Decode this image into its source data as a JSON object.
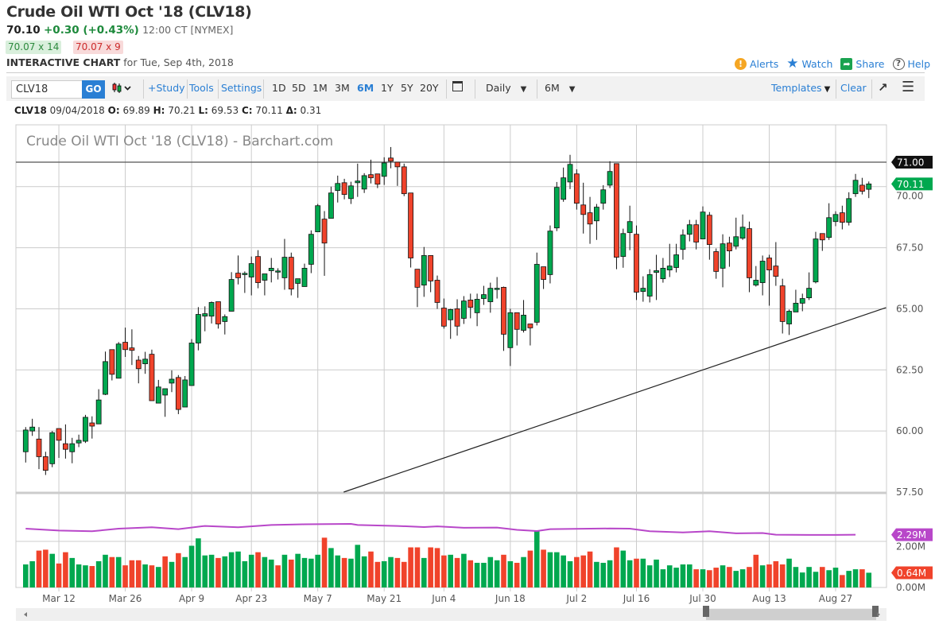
{
  "header": {
    "title": "Crude Oil WTI Oct '18 (CLV18)",
    "last": "70.10",
    "change": "+0.30 (+0.43%)",
    "time": "12:00 CT [NYMEX]",
    "bid": "70.07 x 14",
    "ask": "70.07 x 9",
    "interactive_label": "INTERACTIVE CHART",
    "interactive_date": "for Tue, Sep 4th, 2018",
    "links": {
      "alerts": "Alerts",
      "watch": "Watch",
      "share": "Share",
      "help": "Help"
    }
  },
  "toolbar": {
    "symbol_value": "CLV18",
    "go": "GO",
    "study": "+Study",
    "tools": "Tools",
    "settings": "Settings",
    "periods": [
      "1D",
      "5D",
      "1M",
      "3M",
      "6M",
      "1Y",
      "5Y",
      "20Y"
    ],
    "active_period": "6M",
    "interval": "Daily",
    "range": "6M",
    "templates": "Templates",
    "clear": "Clear"
  },
  "ohlc_line": {
    "symbol": "CLV18",
    "date": "09/04/2018",
    "o_label": "O:",
    "o": "69.89",
    "h_label": "H:",
    "h": "70.21",
    "l_label": "L:",
    "l": "69.53",
    "c_label": "C:",
    "c": "70.11",
    "d_label": "Δ:",
    "d": "0.31"
  },
  "colors": {
    "up": "#00a84f",
    "down": "#f0432b",
    "volume_oi": "#b847c9",
    "grid": "#cccccc",
    "link": "#2a7fd4"
  },
  "chart_data": {
    "type": "candlestick",
    "title": "Crude Oil WTI Oct '18 (CLV18) - Barchart.com",
    "ylim": [
      57.5,
      72.5
    ],
    "yticks": [
      "57.50",
      "60.00",
      "62.50",
      "65.00",
      "67.50",
      "70.00"
    ],
    "ytick_values": [
      57.5,
      60,
      62.5,
      65,
      67.5,
      70
    ],
    "xticks": [
      {
        "i": 5,
        "label": "Mar 12"
      },
      {
        "i": 15,
        "label": "Mar 26"
      },
      {
        "i": 25,
        "label": "Apr 9"
      },
      {
        "i": 34,
        "label": "Apr 23"
      },
      {
        "i": 44,
        "label": "May 7"
      },
      {
        "i": 54,
        "label": "May 21"
      },
      {
        "i": 63,
        "label": "Jun 4"
      },
      {
        "i": 73,
        "label": "Jun 18"
      },
      {
        "i": 83,
        "label": "Jul 2"
      },
      {
        "i": 92,
        "label": "Jul 16"
      },
      {
        "i": 102,
        "label": "Jul 30"
      },
      {
        "i": 112,
        "label": "Aug 13"
      },
      {
        "i": 122,
        "label": "Aug 27"
      }
    ],
    "ohlc": [
      [
        59.15,
        60.16,
        58.71,
        60.04
      ],
      [
        60.0,
        60.5,
        59.8,
        60.16
      ],
      [
        59.67,
        60.16,
        58.44,
        58.95
      ],
      [
        58.95,
        59.15,
        58.2,
        58.39
      ],
      [
        58.66,
        60.0,
        58.52,
        59.93
      ],
      [
        60.1,
        60.1,
        58.9,
        59.62
      ],
      [
        59.48,
        60.27,
        58.87,
        59.25
      ],
      [
        59.15,
        59.72,
        58.68,
        59.48
      ],
      [
        59.51,
        59.85,
        59.34,
        59.62
      ],
      [
        59.58,
        60.66,
        59.51,
        60.56
      ],
      [
        60.33,
        60.6,
        59.69,
        60.2
      ],
      [
        60.29,
        61.71,
        60.29,
        61.27
      ],
      [
        61.5,
        63.25,
        61.47,
        62.84
      ],
      [
        63.33,
        63.33,
        62.07,
        62.32
      ],
      [
        62.16,
        63.64,
        62.16,
        63.56
      ],
      [
        63.63,
        64.23,
        63.03,
        63.33
      ],
      [
        63.4,
        64.16,
        62.7,
        63.3
      ],
      [
        62.9,
        63.07,
        61.95,
        62.55
      ],
      [
        62.75,
        63.24,
        62.34,
        62.94
      ],
      [
        63.14,
        63.33,
        61.24,
        61.24
      ],
      [
        61.14,
        62.09,
        61.14,
        61.8
      ],
      [
        61.47,
        61.73,
        60.58,
        61.73
      ],
      [
        61.96,
        62.48,
        61.59,
        62.12
      ],
      [
        62.19,
        62.29,
        60.69,
        60.88
      ],
      [
        60.98,
        62.25,
        60.98,
        62.09
      ],
      [
        61.86,
        63.76,
        61.86,
        63.6
      ],
      [
        63.6,
        65.07,
        63.3,
        64.77
      ],
      [
        64.7,
        65.1,
        64.08,
        64.8
      ],
      [
        64.7,
        65.3,
        64.4,
        65.26
      ],
      [
        65.29,
        65.29,
        64.19,
        64.38
      ],
      [
        64.48,
        64.77,
        63.95,
        64.68
      ],
      [
        64.9,
        66.5,
        64.9,
        66.2
      ],
      [
        66.46,
        67.18,
        66.0,
        66.27
      ],
      [
        66.42,
        66.53,
        65.65,
        66.45
      ],
      [
        66.3,
        67.14,
        65.55,
        66.85
      ],
      [
        67.14,
        67.4,
        65.84,
        66.07
      ],
      [
        66.17,
        66.43,
        65.55,
        66.43
      ],
      [
        66.56,
        67.08,
        66.08,
        66.66
      ],
      [
        66.54,
        66.66,
        66.2,
        66.55
      ],
      [
        66.27,
        67.86,
        65.78,
        67.11
      ],
      [
        67.11,
        67.3,
        65.55,
        65.81
      ],
      [
        66.04,
        66.23,
        65.45,
        66.23
      ],
      [
        65.91,
        66.85,
        65.91,
        66.66
      ],
      [
        66.82,
        68.21,
        66.46,
        68.05
      ],
      [
        68.15,
        69.29,
        68.15,
        69.22
      ],
      [
        68.67,
        69.0,
        66.35,
        67.69
      ],
      [
        68.7,
        70.0,
        68.7,
        69.74
      ],
      [
        69.84,
        70.45,
        69.35,
        70.13
      ],
      [
        70.16,
        70.32,
        69.48,
        69.68
      ],
      [
        69.51,
        70.2,
        69.29,
        70.03
      ],
      [
        70.16,
        70.94,
        69.58,
        70.23
      ],
      [
        69.9,
        70.55,
        69.74,
        70.45
      ],
      [
        70.49,
        71.1,
        70.13,
        70.36
      ],
      [
        70.52,
        70.52,
        69.94,
        70.1
      ],
      [
        70.42,
        71.2,
        70.07,
        70.97
      ],
      [
        71.17,
        71.62,
        70.75,
        71.04
      ],
      [
        71.0,
        71.0,
        70.03,
        70.81
      ],
      [
        70.81,
        70.94,
        69.61,
        69.71
      ],
      [
        69.74,
        69.74,
        66.69,
        67.08
      ],
      [
        66.62,
        66.62,
        65.07,
        65.88
      ],
      [
        65.97,
        67.53,
        65.49,
        67.18
      ],
      [
        67.18,
        67.18,
        65.68,
        66.14
      ],
      [
        66.17,
        66.36,
        65.0,
        65.26
      ],
      [
        65.03,
        65.42,
        64.19,
        64.29
      ],
      [
        64.55,
        65.0,
        63.77,
        64.97
      ],
      [
        65.0,
        65.39,
        63.9,
        64.29
      ],
      [
        64.61,
        65.52,
        64.38,
        65.32
      ],
      [
        65.36,
        65.62,
        64.61,
        65.06
      ],
      [
        64.84,
        65.62,
        64.29,
        65.39
      ],
      [
        65.42,
        65.94,
        65.16,
        65.58
      ],
      [
        65.29,
        66.07,
        64.84,
        65.84
      ],
      [
        65.82,
        66.3,
        65.42,
        65.84
      ],
      [
        65.88,
        65.91,
        63.28,
        63.96
      ],
      [
        63.41,
        65.0,
        62.66,
        64.84
      ],
      [
        64.84,
        64.84,
        63.5,
        64.16
      ],
      [
        64.12,
        65.36,
        64.03,
        64.74
      ],
      [
        64.38,
        64.38,
        63.5,
        64.22
      ],
      [
        64.45,
        67.3,
        64.32,
        66.82
      ],
      [
        66.72,
        66.72,
        65.81,
        66.2
      ],
      [
        66.4,
        68.41,
        66.04,
        68.18
      ],
      [
        68.31,
        70.19,
        68.18,
        69.97
      ],
      [
        69.48,
        70.78,
        69.38,
        70.36
      ],
      [
        70.19,
        71.3,
        69.9,
        70.91
      ],
      [
        70.52,
        70.71,
        69.06,
        69.32
      ],
      [
        69.25,
        70.16,
        68.08,
        68.86
      ],
      [
        68.93,
        69.58,
        67.66,
        68.47
      ],
      [
        68.6,
        69.29,
        67.82,
        69.16
      ],
      [
        69.32,
        70.06,
        69.06,
        69.87
      ],
      [
        70.06,
        71.04,
        69.94,
        70.62
      ],
      [
        70.94,
        70.94,
        66.62,
        67.11
      ],
      [
        67.14,
        68.28,
        66.68,
        68.08
      ],
      [
        68.12,
        69.22,
        67.4,
        68.57
      ],
      [
        68.05,
        68.41,
        65.36,
        65.68
      ],
      [
        65.71,
        66.33,
        65.29,
        65.84
      ],
      [
        65.52,
        66.62,
        65.26,
        66.4
      ],
      [
        66.49,
        67.21,
        65.36,
        66.56
      ],
      [
        66.23,
        67.08,
        66.07,
        66.66
      ],
      [
        66.59,
        67.66,
        66.3,
        66.75
      ],
      [
        66.69,
        67.66,
        66.49,
        67.21
      ],
      [
        67.43,
        68.25,
        67.01,
        68.02
      ],
      [
        68.05,
        68.64,
        67.76,
        68.44
      ],
      [
        68.44,
        68.64,
        67.43,
        67.73
      ],
      [
        67.86,
        69.19,
        67.86,
        68.96
      ],
      [
        68.83,
        68.96,
        67.01,
        67.63
      ],
      [
        67.34,
        67.47,
        66.23,
        66.53
      ],
      [
        66.66,
        68.05,
        65.88,
        67.66
      ],
      [
        67.69,
        67.95,
        66.72,
        67.37
      ],
      [
        67.56,
        68.73,
        67.43,
        67.95
      ],
      [
        67.89,
        68.86,
        67.82,
        68.34
      ],
      [
        68.28,
        68.57,
        65.68,
        66.27
      ],
      [
        65.97,
        66.75,
        65.91,
        66.17
      ],
      [
        66.07,
        67.18,
        65.55,
        66.95
      ],
      [
        67.08,
        67.21,
        65.13,
        66.59
      ],
      [
        66.75,
        67.73,
        65.94,
        66.33
      ],
      [
        65.94,
        66.23,
        63.99,
        64.48
      ],
      [
        64.38,
        64.97,
        63.93,
        64.9
      ],
      [
        64.87,
        65.78,
        64.87,
        65.23
      ],
      [
        65.23,
        65.62,
        64.9,
        65.42
      ],
      [
        65.45,
        66.49,
        65.36,
        65.84
      ],
      [
        66.1,
        68.15,
        66.04,
        67.86
      ],
      [
        68.08,
        68.08,
        67.37,
        67.82
      ],
      [
        67.92,
        69.32,
        67.82,
        68.73
      ],
      [
        68.57,
        68.99,
        68.38,
        68.86
      ],
      [
        68.93,
        69.22,
        68.25,
        68.54
      ],
      [
        68.54,
        69.77,
        68.41,
        69.51
      ],
      [
        69.71,
        70.52,
        69.58,
        70.26
      ],
      [
        70.06,
        70.36,
        69.68,
        69.81
      ],
      [
        69.89,
        70.21,
        69.53,
        70.11
      ]
    ],
    "volume_M": [
      1.0,
      1.14,
      1.6,
      1.64,
      1.46,
      1.04,
      1.53,
      1.28,
      1.0,
      0.96,
      0.93,
      1.14,
      1.42,
      1.32,
      1.32,
      0.96,
      1.18,
      1.18,
      1.0,
      0.96,
      0.89,
      1.35,
      1.11,
      1.49,
      1.32,
      1.81,
      2.13,
      1.39,
      1.42,
      1.28,
      1.35,
      1.53,
      1.56,
      1.14,
      1.42,
      1.53,
      1.32,
      1.21,
      0.96,
      1.42,
      1.21,
      1.46,
      1.28,
      1.25,
      1.42,
      2.16,
      1.71,
      1.39,
      1.28,
      1.25,
      1.85,
      1.35,
      1.56,
      1.11,
      1.14,
      1.32,
      1.28,
      1.11,
      1.74,
      1.74,
      1.28,
      1.74,
      1.71,
      1.39,
      1.42,
      1.28,
      1.46,
      1.18,
      1.07,
      1.07,
      1.32,
      1.18,
      1.42,
      1.14,
      1.07,
      1.32,
      1.6,
      2.45,
      1.64,
      1.53,
      1.53,
      1.39,
      1.14,
      1.32,
      1.39,
      1.56,
      1.11,
      1.07,
      1.18,
      1.74,
      1.6,
      1.18,
      1.25,
      1.25,
      0.96,
      1.21,
      0.79,
      0.96,
      0.86,
      1.0,
      1.0,
      0.79,
      0.79,
      0.75,
      0.86,
      0.96,
      0.89,
      0.72,
      0.79,
      0.89,
      1.42,
      0.96,
      1.0,
      1.14,
      1.0,
      1.25,
      0.89,
      0.65,
      0.89,
      0.68,
      0.89,
      0.75,
      0.86,
      0.54,
      0.72,
      0.79,
      0.79,
      0.64
    ],
    "open_interest_M": [
      [
        0,
        2.55
      ],
      [
        5,
        2.47
      ],
      [
        10,
        2.44
      ],
      [
        14,
        2.55
      ],
      [
        19,
        2.61
      ],
      [
        23,
        2.53
      ],
      [
        27,
        2.67
      ],
      [
        32,
        2.61
      ],
      [
        37,
        2.71
      ],
      [
        42,
        2.74
      ],
      [
        49,
        2.76
      ],
      [
        50,
        2.71
      ],
      [
        56,
        2.67
      ],
      [
        60,
        2.62
      ],
      [
        62,
        2.65
      ],
      [
        66,
        2.59
      ],
      [
        71,
        2.6
      ],
      [
        74,
        2.5
      ],
      [
        77,
        2.45
      ],
      [
        79,
        2.53
      ],
      [
        88,
        2.56
      ],
      [
        91,
        2.55
      ],
      [
        94,
        2.44
      ],
      [
        99,
        2.39
      ],
      [
        103,
        2.44
      ],
      [
        107,
        2.35
      ],
      [
        111,
        2.36
      ],
      [
        113,
        2.29
      ],
      [
        119,
        2.28
      ],
      [
        122,
        2.28
      ],
      [
        125,
        2.29
      ]
    ],
    "volume_ylim": [
      0,
      2.6
    ],
    "volume_ticks": [
      "0.00M",
      "2.00M"
    ],
    "volume_tick_values": [
      0,
      2
    ],
    "resistance_line": {
      "price": 71.0,
      "label": "71.00"
    },
    "trend_line": {
      "from": [
        47.9,
        57.5
      ],
      "to": [
        129.6,
        65.05
      ]
    },
    "last_price_label": "70.11",
    "oi_label": "2.29M",
    "volume_label": "0.64M"
  }
}
